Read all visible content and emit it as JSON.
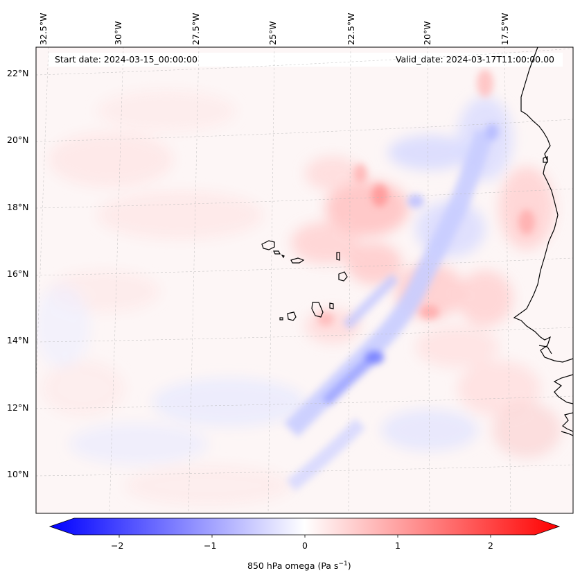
{
  "header": {
    "start_date": "Start date: 2024-03-15_00:00:00",
    "valid_date": "Valid_date: 2024-03-17T11:00:00.00"
  },
  "axes": {
    "longitude_labels": [
      "32.5°W",
      "30°W",
      "27.5°W",
      "25°W",
      "22.5°W",
      "20°W",
      "17.5°W"
    ],
    "latitude_labels": [
      "22°N",
      "20°N",
      "18°N",
      "16°N",
      "14°N",
      "12°N",
      "10°N"
    ]
  },
  "colorbar": {
    "label": "850 hPa omega (Pa s",
    "label_sup": "−1",
    "label_close": ")",
    "ticks": [
      "−2",
      "−1",
      "0",
      "1",
      "2"
    ],
    "min": -2.6,
    "max": 2.6,
    "colormap": "bwr",
    "color_low": "#0000ff",
    "color_mid": "#ffffff",
    "color_high": "#ff0000"
  },
  "map": {
    "field": "850 hPa omega",
    "extent_lon": [
      -33.0,
      -15.5
    ],
    "extent_lat": [
      8.8,
      22.8
    ],
    "features": [
      "Cape Verde islands",
      "West African coastline"
    ]
  }
}
